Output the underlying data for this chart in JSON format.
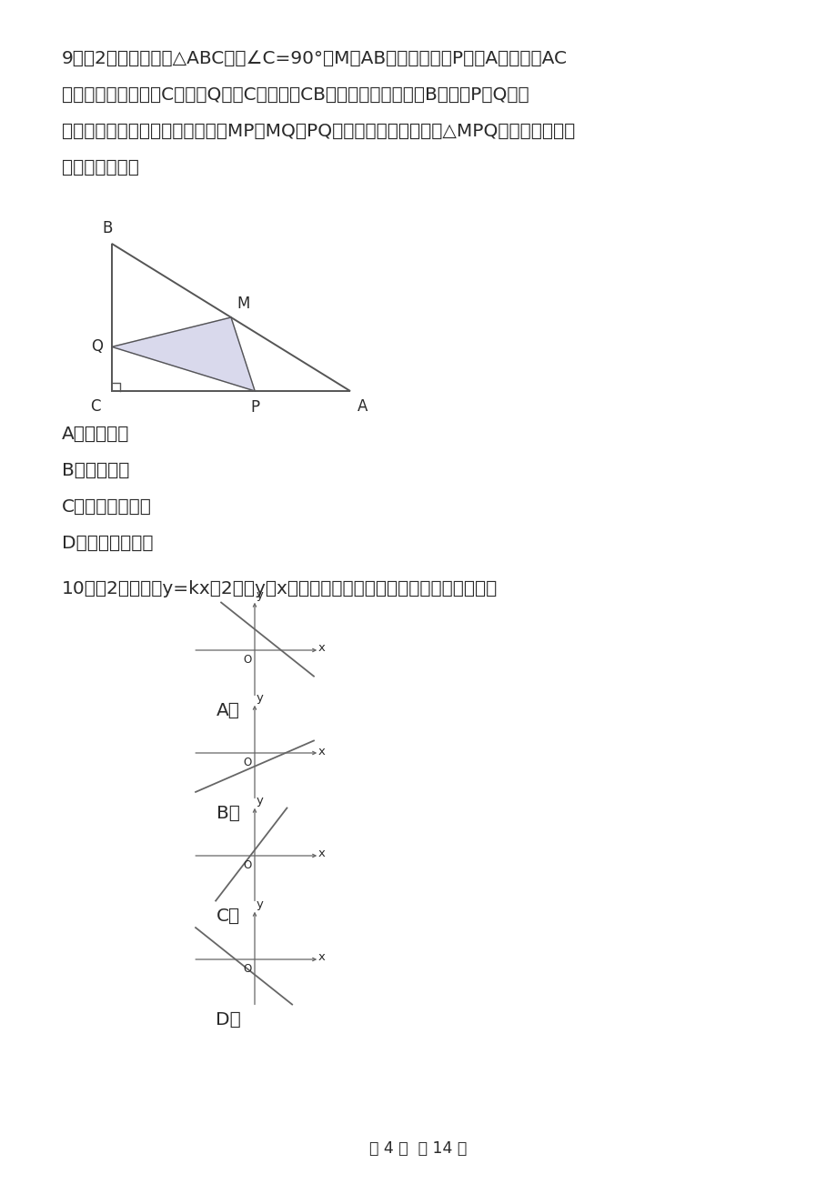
{
  "bg_color": "#ffffff",
  "text_color": "#2a2a2a",
  "line_color": "#555555",
  "q9_lines": [
    "9．（2分）如图，在△ABC中，∠C=90°，M是AB的中点，动点P从点A出发，沿AC",
    "方向匀速运动到终点C，动点Q从点C出发，沿CB方向匀速运动到终点B．已知P、Q两点",
    "同时出发，并同时到达终点，连接MP，MQ，PQ．在整个运动过程中，△MPQ的面积大小变化",
    "情况是（　　）"
  ],
  "q9_options": [
    "A．一直增大",
    "B．一直减小",
    "C．先减小后增大",
    "D．先增大后减少"
  ],
  "q10_text": "10．（2分）函数y=kx－2中，y随x的增大而减小，则它的图像可以是（　　）",
  "footer_text": "第 4 页  共 14 页",
  "fill_color": "#a0a0d0",
  "fill_alpha": 0.4,
  "shade_edge_color": "#8888bb"
}
